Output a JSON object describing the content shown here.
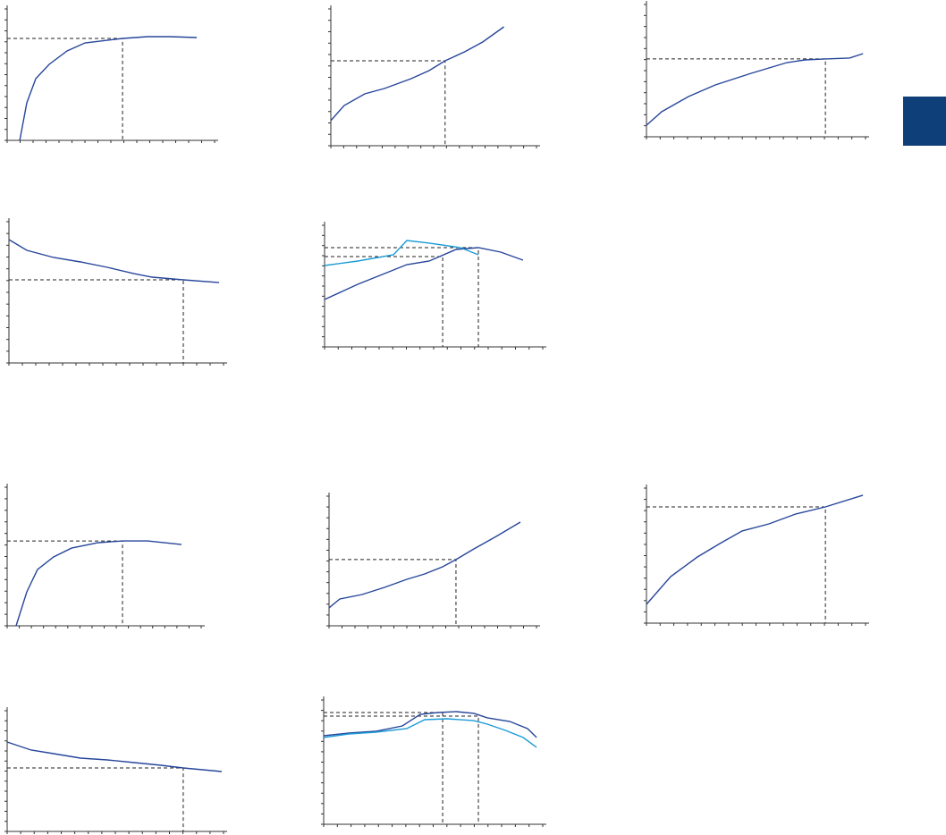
{
  "chart_data": [
    {
      "type": "line",
      "xlim": [
        0,
        16
      ],
      "ylim": [
        0,
        12
      ],
      "xticks": [
        0,
        1,
        2,
        3,
        4,
        5,
        6,
        7,
        8,
        9,
        10,
        11,
        12,
        13,
        14,
        15,
        16
      ],
      "yticks": [
        0,
        1,
        2,
        3,
        4,
        5,
        6,
        7,
        8,
        9,
        10,
        11,
        12
      ],
      "series": [
        {
          "color": "#27469a",
          "x": [
            0.97,
            1.52,
            2.21,
            3.24,
            4.62,
            6.0,
            8.9,
            10.83,
            12.55,
            14.62
          ],
          "values": [
            0,
            3.43,
            5.63,
            6.94,
            8.16,
            8.9,
            9.31,
            9.47,
            9.47,
            9.39
          ]
        }
      ],
      "markers": [
        {
          "x": 8.9,
          "y": 9.31
        }
      ]
    },
    {
      "type": "line",
      "xlim": [
        0,
        16
      ],
      "ylim": [
        0,
        12
      ],
      "xticks": [
        0,
        1,
        2,
        3,
        4,
        5,
        6,
        7,
        8,
        9,
        10,
        11,
        12,
        13,
        14,
        15,
        16
      ],
      "yticks": [
        0,
        1,
        2,
        3,
        4,
        5,
        6,
        7,
        8,
        9,
        10,
        11,
        12
      ],
      "series": [
        {
          "color": "#27469a",
          "x": [
            0,
            1.04,
            2.64,
            4.17,
            6.25,
            7.64,
            8.89,
            10.42,
            11.81,
            13.47
          ],
          "values": [
            2.2,
            3.53,
            4.55,
            5.02,
            5.88,
            6.59,
            7.45,
            8.24,
            9.1,
            10.43
          ]
        }
      ],
      "markers": [
        {
          "x": 8.89,
          "y": 7.45
        }
      ]
    },
    {
      "type": "line",
      "xlim": [
        0,
        16
      ],
      "ylim": [
        0,
        12
      ],
      "xticks": [
        0,
        1,
        2,
        3,
        4,
        5,
        6,
        7,
        8,
        9,
        10,
        11,
        12,
        13,
        14,
        15,
        16
      ],
      "yticks": [
        0,
        1,
        2,
        3,
        4,
        5,
        6,
        7,
        8,
        9,
        10,
        11,
        12
      ],
      "series": [
        {
          "color": "#27469a",
          "x": [
            0,
            1.11,
            3.07,
            5.03,
            7.65,
            10.26,
            11.57,
            13.07,
            14.84,
            15.82
          ],
          "values": [
            1.05,
            2.27,
            3.65,
            4.7,
            5.76,
            6.73,
            6.97,
            7.06,
            7.14,
            7.54
          ]
        }
      ],
      "markers": [
        {
          "x": 13.07,
          "y": 7.06
        }
      ]
    },
    {
      "type": "line",
      "xlim": [
        0,
        16
      ],
      "ylim": [
        0,
        12
      ],
      "xticks": [
        0,
        1,
        2,
        3,
        4,
        5,
        6,
        7,
        8,
        9,
        10,
        11,
        12,
        13,
        14,
        15,
        16
      ],
      "yticks": [
        0,
        1,
        2,
        3,
        4,
        5,
        6,
        7,
        8,
        9,
        10,
        11,
        12
      ],
      "series": [
        {
          "color": "#27469a",
          "x": [
            0,
            1.33,
            3.33,
            5.33,
            7.33,
            9.33,
            10.67,
            13,
            15.67
          ],
          "values": [
            10.48,
            9.57,
            8.96,
            8.58,
            8.13,
            7.59,
            7.29,
            7.06,
            6.83
          ]
        }
      ],
      "markers": [
        {
          "x": 13,
          "y": 7.06
        }
      ]
    },
    {
      "type": "line",
      "xlim": [
        0,
        16
      ],
      "ylim": [
        0,
        12
      ],
      "xticks": [
        0,
        1,
        2,
        3,
        4,
        5,
        6,
        7,
        8,
        9,
        10,
        11,
        12,
        13,
        14,
        15,
        16
      ],
      "yticks": [
        0,
        1,
        2,
        3,
        4,
        5,
        6,
        7,
        8,
        9,
        10,
        11,
        12
      ],
      "series": [
        {
          "color": "#27469a",
          "x": [
            0,
            2.43,
            6.03,
            7.67,
            9.64,
            11.28,
            12.92,
            14.56
          ],
          "values": [
            4.68,
            6.18,
            8.12,
            8.47,
            9.62,
            9.79,
            9.35,
            8.56
          ]
        },
        {
          "color": "#1b9bd7",
          "x": [
            0,
            2.43,
            5.05,
            6.03,
            7.67,
            9.97,
            11.28
          ],
          "values": [
            8.03,
            8.47,
            9.09,
            10.5,
            10.24,
            9.79,
            9.09
          ]
        }
      ],
      "markers": [
        {
          "x": 8.66,
          "y": 8.91
        },
        {
          "x": 11.28,
          "y": 9.79
        }
      ]
    },
    {
      "type": "line",
      "xlim": [
        0,
        16
      ],
      "ylim": [
        0,
        12
      ],
      "xticks": [
        0,
        1,
        2,
        3,
        4,
        5,
        6,
        7,
        8,
        9,
        10,
        11,
        12,
        13,
        14,
        15,
        16
      ],
      "yticks": [
        0,
        1,
        2,
        3,
        4,
        5,
        6,
        7,
        8,
        9,
        10,
        11,
        12
      ],
      "series": [
        {
          "color": "#27469a",
          "x": [
            0.74,
            1.62,
            2.51,
            3.83,
            5.31,
            7.52,
            9.51,
            11.58,
            14.38
          ],
          "values": [
            0,
            2.94,
            4.88,
            5.96,
            6.73,
            7.2,
            7.35,
            7.35,
            7.04
          ]
        }
      ],
      "markers": [
        {
          "x": 9.51,
          "y": 7.35
        }
      ]
    },
    {
      "type": "line",
      "xlim": [
        0,
        16
      ],
      "ylim": [
        0,
        12
      ],
      "xticks": [
        0,
        1,
        2,
        3,
        4,
        5,
        6,
        7,
        8,
        9,
        10,
        11,
        12,
        13,
        14,
        15,
        16
      ],
      "yticks": [
        0,
        1,
        2,
        3,
        4,
        5,
        6,
        7,
        8,
        9,
        10,
        11,
        12
      ],
      "series": [
        {
          "color": "#27469a",
          "x": [
            0,
            0.83,
            2.55,
            4.28,
            6,
            7.38,
            8.76,
            9.79,
            11.17,
            12.9,
            14.76
          ],
          "values": [
            1.66,
            2.48,
            2.9,
            3.56,
            4.3,
            4.8,
            5.46,
            6.13,
            7.12,
            8.28,
            9.6
          ]
        }
      ],
      "markers": [
        {
          "x": 9.79,
          "y": 6.13
        }
      ]
    },
    {
      "type": "line",
      "xlim": [
        0,
        16
      ],
      "ylim": [
        0,
        12
      ],
      "xticks": [
        0,
        1,
        2,
        3,
        4,
        5,
        6,
        7,
        8,
        9,
        10,
        11,
        12,
        13,
        14,
        15,
        16
      ],
      "yticks": [
        0,
        1,
        2,
        3,
        4,
        5,
        6,
        7,
        8,
        9,
        10,
        11,
        12
      ],
      "series": [
        {
          "color": "#27469a",
          "x": [
            0,
            1.76,
            3.72,
            5.36,
            6.99,
            8.95,
            10.91,
            13.07,
            15.81
          ],
          "values": [
            1.67,
            4.13,
            5.88,
            7.07,
            8.19,
            8.82,
            9.7,
            10.33,
            11.37
          ]
        }
      ],
      "markers": [
        {
          "x": 13.07,
          "y": 10.33
        }
      ]
    },
    {
      "type": "line",
      "xlim": [
        0,
        16
      ],
      "ylim": [
        0,
        12
      ],
      "xticks": [
        0,
        1,
        2,
        3,
        4,
        5,
        6,
        7,
        8,
        9,
        10,
        11,
        12,
        13,
        14,
        15,
        16
      ],
      "yticks": [
        0,
        1,
        2,
        3,
        4,
        5,
        6,
        7,
        8,
        9,
        10,
        11,
        12
      ],
      "series": [
        {
          "color": "#27469a",
          "x": [
            0,
            1.78,
            3.44,
            5.42,
            7.4,
            9.39,
            11.37,
            13.02,
            15.86
          ],
          "values": [
            8.89,
            8.09,
            7.73,
            7.29,
            7.11,
            6.84,
            6.58,
            6.31,
            5.96
          ]
        }
      ],
      "markers": [
        {
          "x": 13.02,
          "y": 6.31
        }
      ]
    },
    {
      "type": "line",
      "xlim": [
        0,
        16
      ],
      "ylim": [
        0,
        12
      ],
      "xticks": [
        0,
        1,
        2,
        3,
        4,
        5,
        6,
        7,
        8,
        9,
        10,
        11,
        12,
        13,
        14,
        15,
        16
      ],
      "yticks": [
        0,
        1,
        2,
        3,
        4,
        5,
        6,
        7,
        8,
        9,
        10,
        11,
        12
      ],
      "series": [
        {
          "color": "#27469a",
          "x": [
            0,
            1.83,
            3.79,
            5.75,
            7.05,
            8.36,
            9.67,
            10.97,
            11.95,
            13.59,
            14.89,
            15.55
          ],
          "values": [
            8.55,
            8.81,
            8.98,
            9.5,
            10.62,
            10.79,
            10.88,
            10.71,
            10.28,
            9.93,
            9.24,
            8.38
          ]
        },
        {
          "color": "#1b9bd7",
          "x": [
            0,
            1.83,
            3.79,
            6.07,
            7.38,
            9.01,
            10.97,
            11.95,
            13.26,
            14.56,
            15.55
          ],
          "values": [
            8.38,
            8.72,
            8.89,
            9.24,
            10.1,
            10.19,
            10.01,
            9.67,
            9.07,
            8.38,
            7.43
          ]
        }
      ],
      "markers": [
        {
          "x": 8.69,
          "y": 10.79
        },
        {
          "x": 11.3,
          "y": 10.45
        }
      ]
    }
  ]
}
